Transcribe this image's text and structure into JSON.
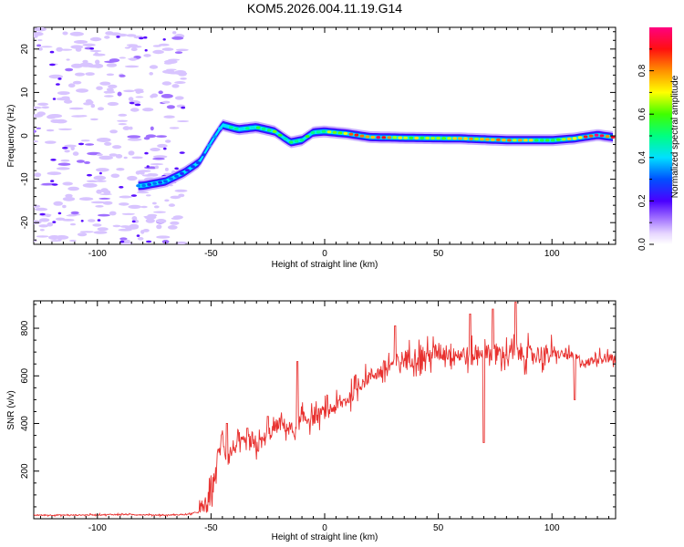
{
  "figure_title": "KOM5.2026.004.11.19.G14",
  "chart_data": [
    {
      "type": "heatmap",
      "panel": "spectrogram",
      "xlabel": "Height of straight line (km)",
      "ylabel": "Frequency (Hz)",
      "xlim": [
        -128,
        128
      ],
      "ylim": [
        -25,
        25
      ],
      "xticks": [
        -100,
        -50,
        0,
        50,
        100
      ],
      "yticks": [
        -20,
        -10,
        0,
        10,
        20
      ],
      "colorbar": {
        "label": "Normalized spectral amplitude",
        "range": [
          0,
          1
        ],
        "ticks": [
          0.0,
          0.2,
          0.4,
          0.6,
          0.8
        ],
        "colormap": "rainbow (white-lavender-purple-blue-cyan-green-yellow-orange-red-magenta)"
      },
      "ridge": {
        "description": "dominant frequency ridge vs height",
        "x": [
          -80,
          -70,
          -62,
          -55,
          -50,
          -45,
          -38,
          -30,
          -22,
          -15,
          -10,
          -5,
          0,
          10,
          20,
          40,
          60,
          80,
          100,
          110,
          120,
          128
        ],
        "freq": [
          -11.5,
          -10.5,
          -8.5,
          -6,
          -1.5,
          2.5,
          1.5,
          2.0,
          1.0,
          -1.5,
          -1.0,
          0.8,
          1.0,
          0.5,
          -0.3,
          -0.5,
          -0.6,
          -1.0,
          -1.0,
          -0.6,
          0.2,
          -0.4
        ],
        "amplitude": [
          0.3,
          0.3,
          0.25,
          0.3,
          0.35,
          0.45,
          0.45,
          0.5,
          0.55,
          0.5,
          0.5,
          0.55,
          0.55,
          0.8,
          0.9,
          0.65,
          0.7,
          0.75,
          0.55,
          0.75,
          0.95,
          0.85
        ]
      }
    },
    {
      "type": "line",
      "panel": "snr",
      "xlabel": "Height of straight line (km)",
      "ylabel": "SNR (v/v)",
      "xlim": [
        -128,
        128
      ],
      "ylim": [
        0,
        915
      ],
      "xticks": [
        -100,
        -50,
        0,
        50,
        100
      ],
      "yticks": [
        200,
        400,
        600,
        800
      ],
      "color": "#e8312f",
      "series": [
        {
          "name": "SNR",
          "x": [
            -128,
            -110,
            -90,
            -70,
            -60,
            -55,
            -52,
            -50,
            -48,
            -45,
            -43,
            -40,
            -35,
            -30,
            -25,
            -20,
            -15,
            -12,
            -10,
            -5,
            0,
            5,
            10,
            15,
            20,
            25,
            30,
            35,
            40,
            45,
            50,
            55,
            60,
            65,
            70,
            75,
            80,
            85,
            90,
            95,
            100,
            105,
            110,
            115,
            120,
            128
          ],
          "values": [
            15,
            15,
            18,
            15,
            18,
            30,
            60,
            100,
            200,
            350,
            250,
            300,
            320,
            300,
            350,
            400,
            380,
            350,
            420,
            420,
            450,
            470,
            500,
            560,
            600,
            620,
            650,
            670,
            680,
            680,
            700,
            700,
            690,
            680,
            720,
            690,
            690,
            700,
            690,
            690,
            690,
            690,
            680,
            650,
            680,
            670
          ],
          "spikes": [
            {
              "x": -43,
              "y": 400
            },
            {
              "x": -34,
              "y": 380
            },
            {
              "x": -25,
              "y": 430
            },
            {
              "x": -12,
              "y": 660
            },
            {
              "x": 31,
              "y": 810
            },
            {
              "x": 64,
              "y": 860
            },
            {
              "x": 70,
              "y": 320
            },
            {
              "x": 74,
              "y": 880
            },
            {
              "x": 84,
              "y": 910
            },
            {
              "x": 110,
              "y": 500
            }
          ]
        }
      ]
    }
  ]
}
